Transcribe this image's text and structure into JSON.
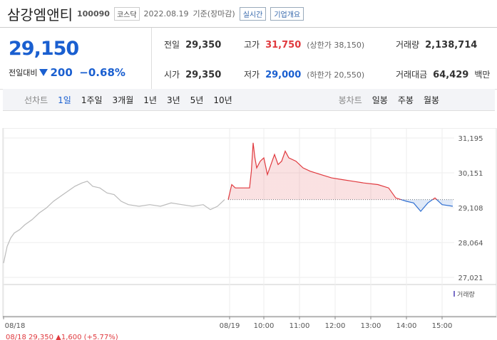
{
  "header": {
    "name": "삼강엠앤티",
    "code": "100090",
    "market": "코스닥",
    "date": "2022.08.19",
    "basis": "기준(장마감)",
    "realtime": "실시간",
    "overview": "기업개요"
  },
  "price": {
    "current": "29,150",
    "change_label": "전일대비",
    "change": "200",
    "change_pct": "−0.68%"
  },
  "info": {
    "prev": {
      "label": "전일",
      "value": "29,350"
    },
    "high": {
      "label": "고가",
      "value": "31,750",
      "note": "(상한가 38,150)"
    },
    "volume": {
      "label": "거래량",
      "value": "2,138,714"
    },
    "open": {
      "label": "시가",
      "value": "29,350"
    },
    "low": {
      "label": "저가",
      "value": "29,000",
      "note": "(하한가 20,550)"
    },
    "amount": {
      "label": "거래대금",
      "value": "64,429",
      "unit": "백만"
    }
  },
  "tabs": {
    "line_label": "선차트",
    "line": [
      "1일",
      "1주일",
      "3개월",
      "1년",
      "3년",
      "5년",
      "10년"
    ],
    "candle_label": "봉차트",
    "candle": [
      "일봉",
      "주봉",
      "월봉"
    ]
  },
  "chart_data": {
    "type": "line",
    "baseline": 29350,
    "ylim": [
      27021,
      31195
    ],
    "yticks": [
      {
        "value": 31195,
        "label": "31,195"
      },
      {
        "value": 30151,
        "label": "30,151"
      },
      {
        "value": 29108,
        "label": "29,108"
      },
      {
        "value": 28064,
        "label": "28,064"
      },
      {
        "value": 27021,
        "label": "27,021"
      }
    ],
    "xlim": [
      0,
      12.64
    ],
    "xticks": [
      {
        "value": 0,
        "label": "08/18"
      },
      {
        "value": 6.34,
        "label": "08/19"
      },
      {
        "value": 7.3,
        "label": "10:00"
      },
      {
        "value": 8.3,
        "label": "11:00"
      },
      {
        "value": 9.3,
        "label": "12:00"
      },
      {
        "value": 10.3,
        "label": "13:00"
      },
      {
        "value": 11.3,
        "label": "14:00"
      },
      {
        "value": 12.3,
        "label": "15:00"
      }
    ],
    "series": [
      {
        "color": "#bbbbbb",
        "x": [
          0,
          0.1,
          0.2,
          0.3,
          0.45,
          0.6,
          0.8,
          1.0,
          1.2,
          1.4,
          1.6,
          1.8,
          2.0,
          2.2,
          2.35,
          2.5,
          2.7,
          2.9,
          3.1,
          3.3,
          3.5,
          3.8,
          4.1,
          4.4,
          4.7,
          5.0,
          5.3,
          5.6,
          5.8,
          6.0,
          6.2
        ],
        "values": [
          27450,
          27950,
          28200,
          28350,
          28450,
          28600,
          28750,
          28950,
          29100,
          29300,
          29450,
          29600,
          29750,
          29850,
          29900,
          29750,
          29700,
          29550,
          29500,
          29300,
          29200,
          29150,
          29200,
          29150,
          29250,
          29200,
          29150,
          29200,
          29050,
          29150,
          29350
        ]
      },
      {
        "color": "#e0393e",
        "color_below": "#2f6fd1",
        "x": [
          6.3,
          6.4,
          6.5,
          6.9,
          6.95,
          7.0,
          7.05,
          7.1,
          7.2,
          7.3,
          7.4,
          7.5,
          7.6,
          7.7,
          7.8,
          7.9,
          8.0,
          8.2,
          8.4,
          8.6,
          8.9,
          9.2,
          9.5,
          9.8,
          10.1,
          10.5,
          10.8,
          11.0,
          11.3,
          11.5,
          11.7,
          11.9,
          12.1,
          12.3,
          12.6
        ],
        "values": [
          29350,
          29800,
          29700,
          29700,
          30200,
          31050,
          30600,
          30300,
          30500,
          30600,
          30100,
          30400,
          30700,
          30400,
          30500,
          30800,
          30600,
          30500,
          30300,
          30200,
          30100,
          30000,
          29950,
          29900,
          29850,
          29800,
          29700,
          29400,
          29300,
          29250,
          29000,
          29250,
          29400,
          29200,
          29150
        ]
      }
    ],
    "volume_label": "거래량",
    "footer": "08/18  29,350 ▲1,600 (+5.77%)"
  }
}
